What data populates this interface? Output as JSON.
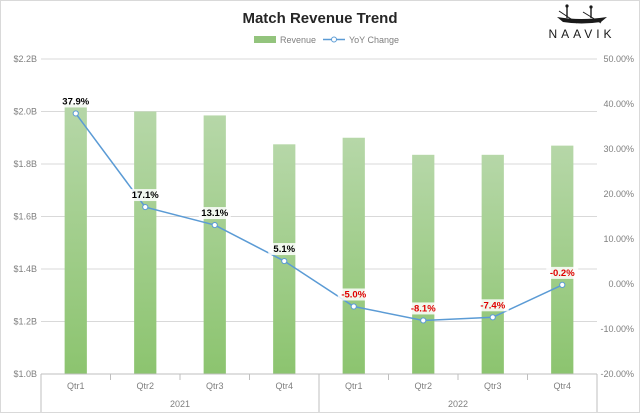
{
  "chart_data": {
    "type": "bar",
    "title": "Match Revenue Trend",
    "categories": [
      "Qtr1",
      "Qtr2",
      "Qtr3",
      "Qtr4",
      "Qtr1",
      "Qtr2",
      "Qtr3",
      "Qtr4"
    ],
    "category_groups": [
      {
        "label": "2021",
        "count": 4
      },
      {
        "label": "2022",
        "count": 4
      }
    ],
    "series": [
      {
        "name": "Revenue",
        "type": "bar",
        "axis": "left",
        "color": "#93c47d",
        "values": [
          2.03,
          2.0,
          1.985,
          1.875,
          1.9,
          1.835,
          1.835,
          1.87
        ]
      },
      {
        "name": "YoY Change",
        "type": "line",
        "axis": "right",
        "color": "#5b9bd5",
        "values": [
          37.9,
          17.1,
          13.1,
          5.1,
          -5.0,
          -8.1,
          -7.4,
          -0.2
        ],
        "labels": [
          "37.9%",
          "17.1%",
          "13.1%",
          "5.1%",
          "-5.0%",
          "-8.1%",
          "-7.4%",
          "-0.2%"
        ]
      }
    ],
    "y_left": {
      "min": 1.0,
      "max": 2.2,
      "ticks": [
        "$1.0B",
        "$1.2B",
        "$1.4B",
        "$1.6B",
        "$1.8B",
        "$2.0B",
        "$2.2B"
      ]
    },
    "y_right": {
      "min": -20,
      "max": 50,
      "ticks": [
        "-20.00%",
        "-10.00%",
        "0.00%",
        "10.00%",
        "20.00%",
        "30.00%",
        "40.00%",
        "50.00%"
      ]
    },
    "grid": true,
    "legend": "top-center",
    "label_colors": {
      "positive": "#000000",
      "negative": "#e00000"
    }
  },
  "logo": {
    "text": "NAAVIK"
  }
}
